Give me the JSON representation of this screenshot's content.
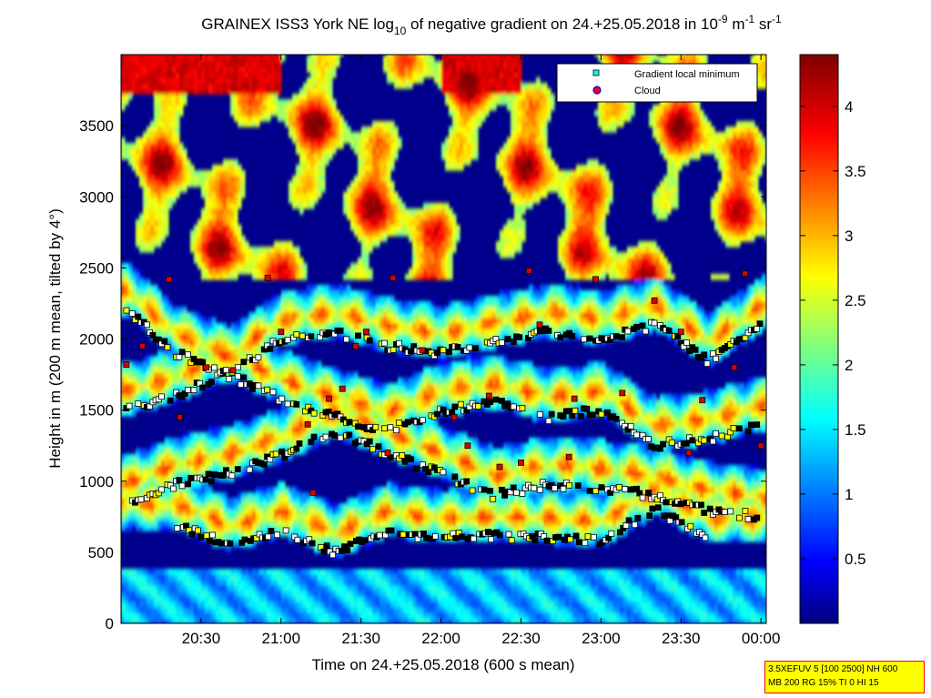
{
  "chart_data": {
    "type": "heatmap",
    "title_parts": {
      "prefix": "GRAINEX ISS3 York NE log",
      "sub": "10",
      "middle": " of negative gradient on 24.+25.05.2018 in 10",
      "sup1": "-9",
      "unit1": " m",
      "sup2": "-1",
      "unit2": " sr",
      "sup3": "-1"
    },
    "xlabel": "Time on 24.+25.05.2018 (600 s mean)",
    "ylabel": "Height in m (200 m mean, tilted by 4°)",
    "x_tick_labels": [
      "20:30",
      "21:00",
      "21:30",
      "22:00",
      "22:30",
      "23:00",
      "23:30",
      "00:00"
    ],
    "x_ticks_minutes": [
      30,
      60,
      90,
      120,
      150,
      180,
      210,
      240
    ],
    "xlim_minutes_after_20h": [
      0,
      242
    ],
    "y_tick_labels": [
      "0",
      "500",
      "1000",
      "1500",
      "2000",
      "2500",
      "3000",
      "3500"
    ],
    "y_ticks": [
      0,
      500,
      1000,
      1500,
      2000,
      2500,
      3000,
      3500
    ],
    "ylim": [
      0,
      4000
    ],
    "colorbar": {
      "tick_labels": [
        "0.5",
        "1",
        "1.5",
        "2",
        "2.5",
        "3",
        "3.5",
        "4"
      ],
      "ticks": [
        0.5,
        1,
        1.5,
        2,
        2.5,
        3,
        3.5,
        4
      ],
      "range": [
        0,
        4.4
      ],
      "colormap": "jet"
    },
    "legend": {
      "placement": "top-right",
      "entries": [
        "Gradient local minimum",
        "Cloud"
      ]
    },
    "series": [
      {
        "name": "Gradient local minimum",
        "marker": "square",
        "bands": [
          {
            "t": [
              2,
              20,
              40,
              60,
              80,
              100,
              120,
              140,
              160,
              180,
              200,
              220,
              240
            ],
            "h": [
              850,
              980,
              1050,
              1180,
              1350,
              1200,
              1050,
              900,
              980,
              950,
              900,
              800,
              750
            ]
          },
          {
            "t": [
              2,
              20,
              40,
              60,
              80,
              100,
              120,
              140,
              160,
              180,
              200,
              220,
              240
            ],
            "h": [
              1500,
              1600,
              1750,
              1580,
              1450,
              1350,
              1500,
              1550,
              1450,
              1500,
              1250,
              1300,
              1400
            ]
          },
          {
            "t": [
              2,
              20,
              40,
              60,
              80,
              100,
              120,
              140,
              160,
              180,
              200,
              220,
              240
            ],
            "h": [
              2200,
              1900,
              1750,
              2000,
              2050,
              1950,
              1900,
              1980,
              2050,
              2000,
              2100,
              1850,
              2100
            ]
          },
          {
            "t": [
              20,
              40,
              60,
              80,
              100,
              120,
              140,
              160,
              180,
              200,
              220
            ],
            "h": [
              700,
              550,
              650,
              500,
              650,
              600,
              620,
              600,
              580,
              800,
              600
            ]
          }
        ]
      },
      {
        "name": "Cloud",
        "marker": "circle",
        "points": [
          {
            "t": 2,
            "h": 1820
          },
          {
            "t": 8,
            "h": 1950
          },
          {
            "t": 18,
            "h": 2420
          },
          {
            "t": 22,
            "h": 1450
          },
          {
            "t": 32,
            "h": 1800
          },
          {
            "t": 42,
            "h": 1780
          },
          {
            "t": 55,
            "h": 2430
          },
          {
            "t": 60,
            "h": 2050
          },
          {
            "t": 70,
            "h": 1400
          },
          {
            "t": 72,
            "h": 920
          },
          {
            "t": 78,
            "h": 1580
          },
          {
            "t": 83,
            "h": 1650
          },
          {
            "t": 88,
            "h": 1950
          },
          {
            "t": 92,
            "h": 2050
          },
          {
            "t": 100,
            "h": 1200
          },
          {
            "t": 102,
            "h": 2430
          },
          {
            "t": 113,
            "h": 1920
          },
          {
            "t": 125,
            "h": 1450
          },
          {
            "t": 130,
            "h": 1250
          },
          {
            "t": 138,
            "h": 1600
          },
          {
            "t": 142,
            "h": 1100
          },
          {
            "t": 150,
            "h": 1130
          },
          {
            "t": 153,
            "h": 2480
          },
          {
            "t": 157,
            "h": 2100
          },
          {
            "t": 168,
            "h": 1170
          },
          {
            "t": 170,
            "h": 1580
          },
          {
            "t": 178,
            "h": 2420
          },
          {
            "t": 188,
            "h": 1620
          },
          {
            "t": 200,
            "h": 2270
          },
          {
            "t": 210,
            "h": 2050
          },
          {
            "t": 213,
            "h": 1200
          },
          {
            "t": 218,
            "h": 1570
          },
          {
            "t": 230,
            "h": 1800
          },
          {
            "t": 234,
            "h": 2460
          },
          {
            "t": 240,
            "h": 1250
          }
        ]
      }
    ]
  },
  "info_box": {
    "line1": "3.5XEFUV 5 [100 2500] NH 600",
    "line2": "MB 200 RG 15% TI 0 HI 15"
  }
}
